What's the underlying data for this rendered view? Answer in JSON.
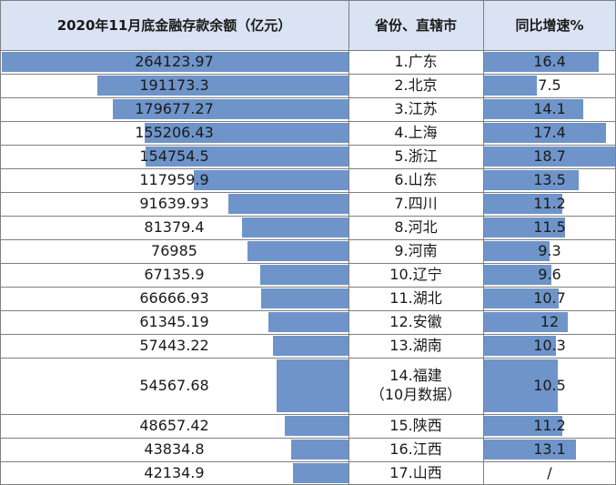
{
  "chart_data": {
    "type": "table",
    "headers": [
      "2020年11月底金融存款余额（亿元）",
      "省份、直辖市",
      "同比增速%"
    ],
    "columns": [
      "deposit_balance",
      "province",
      "yoy_growth"
    ],
    "max_deposit": 264123.97,
    "max_growth": 18.7,
    "bar_color": "#6e94c9",
    "header_bg": "#dae3f3",
    "rows": [
      {
        "deposit": 264123.97,
        "deposit_label": "264123.97",
        "province": "1.广东",
        "growth": 16.4,
        "growth_label": "16.4"
      },
      {
        "deposit": 191173.3,
        "deposit_label": "191173.3",
        "province": "2.北京",
        "growth": 7.5,
        "growth_label": "7.5"
      },
      {
        "deposit": 179677.27,
        "deposit_label": "179677.27",
        "province": "3.江苏",
        "growth": 14.1,
        "growth_label": "14.1"
      },
      {
        "deposit": 155206.43,
        "deposit_label": "155206.43",
        "province": "4.上海",
        "growth": 17.4,
        "growth_label": "17.4"
      },
      {
        "deposit": 154754.5,
        "deposit_label": "154754.5",
        "province": "5.浙江",
        "growth": 18.7,
        "growth_label": "18.7"
      },
      {
        "deposit": 117959.9,
        "deposit_label": "117959.9",
        "province": "6.山东",
        "growth": 13.5,
        "growth_label": "13.5"
      },
      {
        "deposit": 91639.93,
        "deposit_label": "91639.93",
        "province": "7.四川",
        "growth": 11.2,
        "growth_label": "11.2"
      },
      {
        "deposit": 81379.4,
        "deposit_label": "81379.4",
        "province": "8.河北",
        "growth": 11.5,
        "growth_label": "11.5"
      },
      {
        "deposit": 76985,
        "deposit_label": "76985",
        "province": "9.河南",
        "growth": 9.3,
        "growth_label": "9.3"
      },
      {
        "deposit": 67135.9,
        "deposit_label": "67135.9",
        "province": "10.辽宁",
        "growth": 9.6,
        "growth_label": "9.6"
      },
      {
        "deposit": 66666.93,
        "deposit_label": "66666.93",
        "province": "11.湖北",
        "growth": 10.7,
        "growth_label": "10.7"
      },
      {
        "deposit": 61345.19,
        "deposit_label": "61345.19",
        "province": "12.安徽",
        "growth": 12,
        "growth_label": "12"
      },
      {
        "deposit": 57443.22,
        "deposit_label": "57443.22",
        "province": "13.湖南",
        "growth": 10.3,
        "growth_label": "10.3"
      },
      {
        "deposit": 54567.68,
        "deposit_label": "54567.68",
        "province": "14.福建",
        "province_note": "（10月数据）",
        "growth": 10.5,
        "growth_label": "10.5"
      },
      {
        "deposit": 48657.42,
        "deposit_label": "48657.42",
        "province": "15.陕西",
        "growth": 11.2,
        "growth_label": "11.2"
      },
      {
        "deposit": 43834.8,
        "deposit_label": "43834.8",
        "province": "16.江西",
        "growth": 13.1,
        "growth_label": "13.1"
      },
      {
        "deposit": 42134.9,
        "deposit_label": "42134.9",
        "province": "17.山西",
        "growth": null,
        "growth_label": "/"
      }
    ]
  }
}
